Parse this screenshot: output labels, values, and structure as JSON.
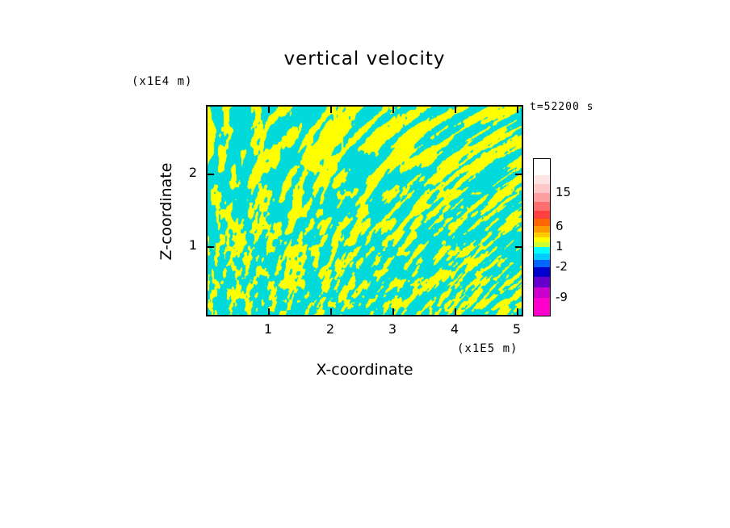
{
  "title": "vertical velocity",
  "timestamp": "t=52200 s",
  "axes": {
    "x": {
      "label": "X-coordinate",
      "unit": "(x1E5 m)",
      "ticks": [
        "1",
        "2",
        "3",
        "4",
        "5"
      ]
    },
    "y": {
      "label": "Z-coordinate",
      "unit": "(x1E4 m)",
      "ticks": [
        "2",
        "1"
      ]
    }
  },
  "colorbar": {
    "labels": [
      {
        "text": "15",
        "at": 42
      },
      {
        "text": "6",
        "at": 84
      },
      {
        "text": "1",
        "at": 109
      },
      {
        "text": "-2",
        "at": 134
      },
      {
        "text": "-9",
        "at": 172
      }
    ],
    "segments": [
      {
        "color": "#FFFFFF",
        "h": 20
      },
      {
        "color": "#FFE4E4",
        "h": 11
      },
      {
        "color": "#FFC8C8",
        "h": 11
      },
      {
        "color": "#FF9E9E",
        "h": 11
      },
      {
        "color": "#FF6E6E",
        "h": 11
      },
      {
        "color": "#FF4040",
        "h": 10
      },
      {
        "color": "#FF6600",
        "h": 9
      },
      {
        "color": "#FF9900",
        "h": 8
      },
      {
        "color": "#FFCC00",
        "h": 6
      },
      {
        "color": "#FFFF00",
        "h": 6
      },
      {
        "color": "#CCFF33",
        "h": 6
      },
      {
        "color": "#00FFFF",
        "h": 8
      },
      {
        "color": "#00CCFF",
        "h": 8
      },
      {
        "color": "#0066FF",
        "h": 9
      },
      {
        "color": "#0000CC",
        "h": 12
      },
      {
        "color": "#6600CC",
        "h": 13
      },
      {
        "color": "#CC00CC",
        "h": 13
      },
      {
        "color": "#FF00CC",
        "h": 22
      }
    ]
  },
  "field": {
    "positive_color": "#FFFF00",
    "negative_color": "#00DADA",
    "seed": 7
  },
  "chart_data": {
    "type": "heatmap",
    "title": "vertical velocity",
    "xlabel": "X-coordinate",
    "ylabel": "Z-coordinate",
    "x_unit": "(x1E5 m)",
    "y_unit": "(x1E4 m)",
    "xlim": [
      0,
      5.1
    ],
    "ylim": [
      0,
      2.9
    ],
    "x_ticks": [
      1,
      2,
      3,
      4,
      5
    ],
    "y_ticks": [
      1,
      2
    ],
    "annotation": "t=52200 s",
    "colorbar_tick_values": [
      15,
      6,
      1,
      -2,
      -9
    ],
    "legend_position": "right",
    "grid": false,
    "value_description": "Two-tone turbulent vertical-velocity field: weakly positive values (yellow band near level 1) and weakly negative values (cyan band between 1 and -2) form interleaved, vertically elongated convection filaments; structures become finer and more cyan-dominated toward the bottom boundary."
  }
}
